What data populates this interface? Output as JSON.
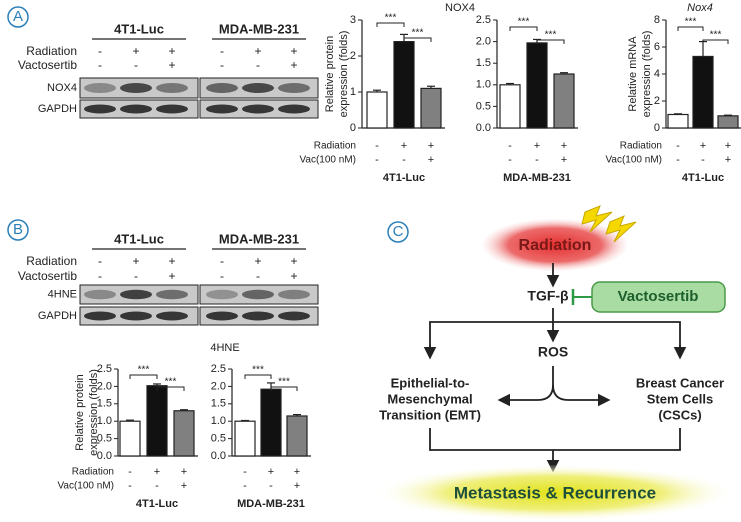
{
  "panel_labels": [
    "A",
    "B",
    "C"
  ],
  "blots": [
    {
      "cell_lines": [
        "4T1-Luc",
        "MDA-MB-231"
      ],
      "conditions": [
        {
          "label": "Radiation",
          "marks": [
            "-",
            "+",
            "+",
            "-",
            "+",
            "+"
          ]
        },
        {
          "label": "Vactosertib",
          "marks": [
            "-",
            "-",
            "+",
            "-",
            "-",
            "+"
          ]
        }
      ],
      "bands": [
        "NOX4",
        "GAPDH"
      ]
    },
    {
      "cell_lines": [
        "4T1-Luc",
        "MDA-MB-231"
      ],
      "conditions": [
        {
          "label": "Radiation",
          "marks": [
            "-",
            "+",
            "+",
            "-",
            "+",
            "+"
          ]
        },
        {
          "label": "Vactosertib",
          "marks": [
            "-",
            "-",
            "+",
            "-",
            "-",
            "+"
          ]
        }
      ],
      "bands": [
        "4HNE",
        "GAPDH"
      ]
    }
  ],
  "chart_data": [
    {
      "type": "bar",
      "title": "NOX4",
      "ylabel": [
        "Relative protein",
        "expression (folds)"
      ],
      "xlabel": "4T1-Luc",
      "categories": [
        null,
        null,
        null
      ],
      "values": [
        1.0,
        2.4,
        1.1
      ],
      "errors": [
        0.05,
        0.2,
        0.06
      ],
      "colors": [
        "#ffffff",
        "#111111",
        "#808080"
      ],
      "ylim": [
        0,
        3
      ],
      "yticks": [
        0,
        1,
        2,
        3
      ],
      "significance": [
        "***",
        "***"
      ],
      "conditions": [
        {
          "label": "Radiation",
          "marks": [
            "-",
            "+",
            "+"
          ]
        },
        {
          "label": "Vac(100 nM)",
          "marks": [
            "-",
            "-",
            "+"
          ]
        }
      ]
    },
    {
      "type": "bar",
      "xlabel": "MDA-MB-231",
      "categories": [
        null,
        null,
        null
      ],
      "values": [
        1.0,
        1.97,
        1.25
      ],
      "errors": [
        0.03,
        0.08,
        0.03
      ],
      "colors": [
        "#ffffff",
        "#111111",
        "#808080"
      ],
      "ylim": [
        0,
        2.5
      ],
      "yticks": [
        {
          "value": 0,
          "label": "0.0"
        },
        0.5,
        {
          "value": 1,
          "label": "1.0"
        },
        1.5,
        {
          "value": 2,
          "label": "2.0"
        },
        2.5
      ],
      "significance": [
        "***",
        "***"
      ],
      "conditions": [
        {
          "marks": [
            "-",
            "+",
            "+"
          ]
        },
        {
          "marks": [
            "-",
            "-",
            "+"
          ]
        }
      ]
    },
    {
      "type": "bar",
      "title": "Nox4",
      "ylabel": [
        "Relative mRNA",
        "expression (folds)"
      ],
      "xlabel": "4T1-Luc",
      "categories": [
        null,
        null,
        null
      ],
      "values": [
        1.0,
        5.3,
        0.9
      ],
      "errors": [
        0.05,
        1.1,
        0.05
      ],
      "colors": [
        "#ffffff",
        "#111111",
        "#808080"
      ],
      "ylim": [
        0,
        8
      ],
      "yticks": [
        0,
        2,
        4,
        6,
        8
      ],
      "significance": [
        "***",
        "***"
      ],
      "conditions": [
        {
          "label": "Radiation",
          "marks": [
            "-",
            "+",
            "+"
          ]
        },
        {
          "label": "Vac(100 nM)",
          "marks": [
            "-",
            "-",
            "+"
          ]
        }
      ]
    },
    {
      "type": "bar",
      "title": "4HNE",
      "ylabel": [
        "Relative protein",
        "expression (folds)"
      ],
      "xlabel": "4T1-Luc",
      "categories": [
        null,
        null,
        null
      ],
      "values": [
        1.0,
        2.02,
        1.3
      ],
      "errors": [
        0.03,
        0.05,
        0.03
      ],
      "colors": [
        "#ffffff",
        "#111111",
        "#808080"
      ],
      "ylim": [
        0,
        2.5
      ],
      "yticks": [
        {
          "value": 0,
          "label": "0.0"
        },
        0.5,
        {
          "value": 1,
          "label": "1.0"
        },
        1.5,
        {
          "value": 2,
          "label": "2.0"
        },
        2.5
      ],
      "significance": [
        "***",
        "***"
      ],
      "conditions": [
        {
          "label": "Radiation",
          "marks": [
            "-",
            "+",
            "+"
          ]
        },
        {
          "label": "Vac(100 nM)",
          "marks": [
            "-",
            "-",
            "+"
          ]
        }
      ]
    },
    {
      "type": "bar",
      "xlabel": "MDA-MB-231",
      "categories": [
        null,
        null,
        null
      ],
      "values": [
        1.0,
        1.92,
        1.15
      ],
      "errors": [
        0.02,
        0.18,
        0.04
      ],
      "colors": [
        "#ffffff",
        "#111111",
        "#808080"
      ],
      "ylim": [
        0,
        2.5
      ],
      "yticks": [
        {
          "value": 0,
          "label": "0.0"
        },
        0.5,
        {
          "value": 1,
          "label": "1.0"
        },
        1.5,
        {
          "value": 2,
          "label": "2.0"
        },
        2.5
      ],
      "significance": [
        "***",
        "***"
      ],
      "conditions": [
        {
          "marks": [
            "-",
            "+",
            "+"
          ]
        },
        {
          "marks": [
            "-",
            "-",
            "+"
          ]
        }
      ]
    }
  ],
  "diagram": {
    "nodes": [
      {
        "label": "Radiation"
      },
      {
        "label": "TGF-β"
      },
      {
        "label": "Vactosertib"
      },
      {
        "label": "ROS"
      },
      {
        "lines": [
          "Epithelial-to-",
          "Mesenchymal",
          "Transition (EMT)"
        ]
      },
      {
        "lines": [
          "Breast Cancer",
          "Stem Cells",
          "(CSCs)"
        ]
      },
      {
        "label": "Metastasis & Recurrence"
      }
    ]
  }
}
